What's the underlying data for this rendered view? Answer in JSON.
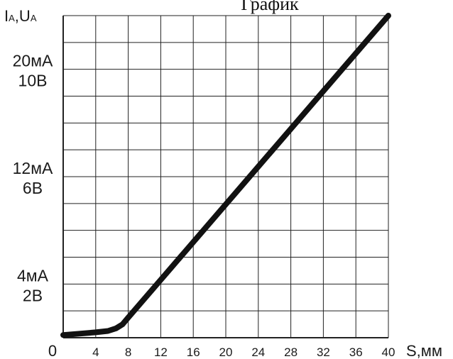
{
  "chart_data": {
    "type": "line",
    "title": "График",
    "xlabel": "S,мм",
    "ylabel": "IA,UA",
    "ylabel_parts": {
      "i": "I",
      "i_sub": "A",
      "sep": ",",
      "u": "U",
      "u_sub": "A"
    },
    "origin_label": "0",
    "xlim": [
      0,
      40
    ],
    "ylim": [
      0,
      24
    ],
    "x_ticks": [
      4,
      8,
      12,
      16,
      20,
      24,
      28,
      32,
      36,
      40
    ],
    "y_tick_labels": [
      {
        "y": 20,
        "current": "20мА",
        "voltage": "10В"
      },
      {
        "y": 12,
        "current": "12мА",
        "voltage": "6В"
      },
      {
        "y": 4,
        "current": "4мА",
        "voltage": "2В"
      }
    ],
    "grid": true,
    "x_grid_step": 4,
    "y_grid_step": 2,
    "line_color": "#111111",
    "series": [
      {
        "x": [
          0,
          2,
          4,
          5.5,
          6.5,
          7.3,
          8,
          40
        ],
        "y": [
          0.2,
          0.3,
          0.4,
          0.5,
          0.7,
          1.0,
          1.5,
          24
        ]
      }
    ]
  }
}
